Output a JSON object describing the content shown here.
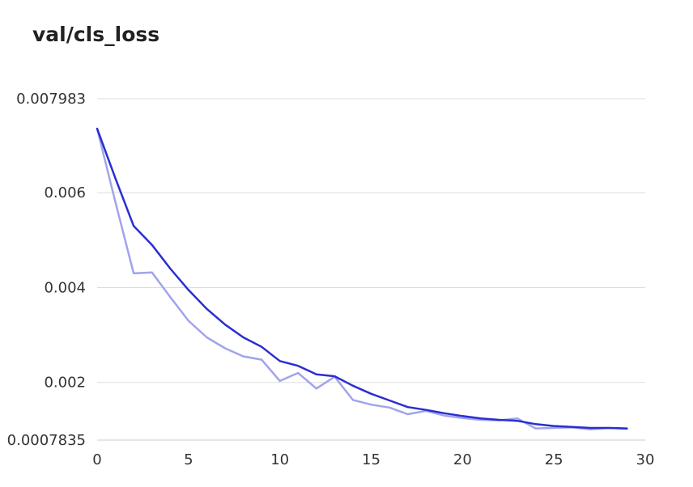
{
  "chart_data": {
    "type": "line",
    "title": "val/cls_loss",
    "xlabel": "",
    "ylabel": "",
    "xlim": [
      0,
      30
    ],
    "ylim": [
      0.0007835,
      0.007983
    ],
    "x_ticks": [
      "0",
      "5",
      "10",
      "15",
      "20",
      "25",
      "30"
    ],
    "y_ticks": [
      {
        "value": 0.007983,
        "label": "0.007983"
      },
      {
        "value": 0.006,
        "label": "0.006"
      },
      {
        "value": 0.004,
        "label": "0.004"
      },
      {
        "value": 0.002,
        "label": "0.002"
      },
      {
        "value": 0.0007835,
        "label": "0.0007835"
      }
    ],
    "grid": true,
    "x": [
      0,
      1,
      2,
      3,
      4,
      5,
      6,
      7,
      8,
      9,
      10,
      11,
      12,
      13,
      14,
      15,
      16,
      17,
      18,
      19,
      20,
      21,
      22,
      23,
      24,
      25,
      26,
      27,
      28,
      29
    ],
    "series": [
      {
        "color": "#a0a4ec",
        "values": [
          0.00735,
          0.0058,
          0.0043,
          0.00432,
          0.0038,
          0.0033,
          0.00295,
          0.00272,
          0.00255,
          0.00248,
          0.00203,
          0.0022,
          0.00187,
          0.00212,
          0.00163,
          0.00153,
          0.00147,
          0.00133,
          0.0014,
          0.0013,
          0.00125,
          0.00121,
          0.0012,
          0.00124,
          0.00103,
          0.00104,
          0.00105,
          0.00101,
          0.00104,
          0.00102
        ]
      },
      {
        "color": "#2a2ed0",
        "values": [
          0.00735,
          0.0063,
          0.0053,
          0.0049,
          0.0044,
          0.00395,
          0.00355,
          0.00322,
          0.00295,
          0.00275,
          0.00245,
          0.00235,
          0.00217,
          0.00213,
          0.00193,
          0.00176,
          0.00162,
          0.00148,
          0.00142,
          0.00135,
          0.00129,
          0.00124,
          0.00121,
          0.00119,
          0.00112,
          0.00108,
          0.00106,
          0.00104,
          0.00104,
          0.00103
        ]
      }
    ]
  }
}
